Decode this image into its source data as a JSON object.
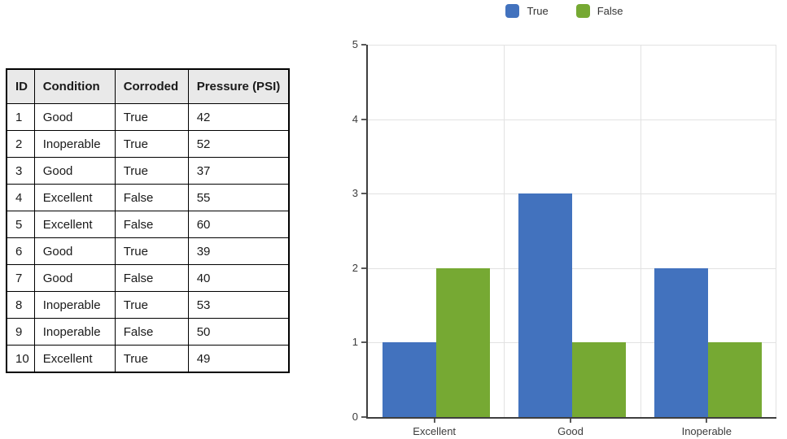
{
  "table": {
    "columns": [
      "ID",
      "Condition",
      "Corroded",
      "Pressure (PSI)"
    ],
    "rows": [
      [
        "1",
        "Good",
        "True",
        "42"
      ],
      [
        "2",
        "Inoperable",
        "True",
        "52"
      ],
      [
        "3",
        "Good",
        "True",
        "37"
      ],
      [
        "4",
        "Excellent",
        "False",
        "55"
      ],
      [
        "5",
        "Excellent",
        "False",
        "60"
      ],
      [
        "6",
        "Good",
        "True",
        "39"
      ],
      [
        "7",
        "Good",
        "False",
        "40"
      ],
      [
        "8",
        "Inoperable",
        "True",
        "53"
      ],
      [
        "9",
        "Inoperable",
        "False",
        "50"
      ],
      [
        "10",
        "Excellent",
        "True",
        "49"
      ]
    ]
  },
  "chart_data": {
    "type": "bar",
    "categories": [
      "Excellent",
      "Good",
      "Inoperable"
    ],
    "series": [
      {
        "name": "True",
        "color": "#4272BE",
        "values": [
          1,
          3,
          2
        ]
      },
      {
        "name": "False",
        "color": "#76A933",
        "values": [
          2,
          1,
          1
        ]
      }
    ],
    "title": "",
    "xlabel": "",
    "ylabel": "",
    "ylim": [
      0,
      5
    ],
    "yticks": [
      0,
      1,
      2,
      3,
      4,
      5
    ],
    "grid": true,
    "legend_position": "top"
  },
  "colors": {
    "series_true": "#4272BE",
    "series_false": "#76A933",
    "gridline": "#E2E2E2",
    "axis": "#3F3F3F",
    "table_header_bg": "#E9E9E9",
    "table_border": "#000000"
  }
}
